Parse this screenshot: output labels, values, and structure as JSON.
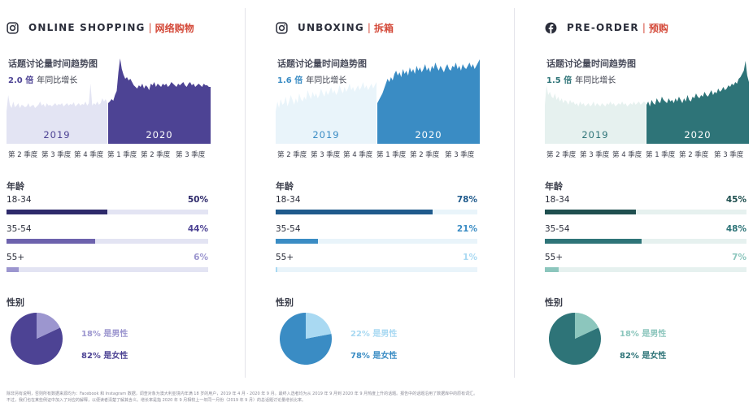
{
  "panels": [
    {
      "title_en": "ONLINE SHOPPING",
      "title_cn": "网络购物",
      "icon": "instagram-icon",
      "trend_label": "话题讨论量时间趋势图",
      "growth_value": "2.0 倍",
      "growth_text": "年同比增长",
      "age_label": "年龄",
      "gender_label": "性别",
      "colors": {
        "dark": "#2e2a6b",
        "main": "#4d4394",
        "mid": "#6d62ad",
        "light": "#9c96cf",
        "pale": "#e3e4f3"
      },
      "chart_data": {
        "type": "area",
        "title": "话题讨论量时间趋势图",
        "segments": [
          "2019",
          "2020"
        ],
        "quarter_labels": [
          "第 2 季度",
          "第 3 季度",
          "第 4 季度",
          "第 1 季度",
          "第 2 季度",
          "第 3 季度"
        ],
        "values_2019": [
          40,
          60,
          48,
          44,
          52,
          45,
          47,
          50,
          44,
          48,
          47,
          45,
          46,
          50,
          45,
          47,
          48,
          44,
          46,
          48,
          52,
          47,
          49,
          45,
          50,
          47,
          48,
          46,
          48,
          50,
          47,
          49,
          48,
          50,
          46,
          48,
          50,
          47,
          49,
          48,
          51,
          46,
          48,
          50,
          47,
          49,
          48,
          52,
          47,
          50,
          74,
          47,
          50,
          48,
          52,
          48,
          50,
          56,
          52,
          55,
          50
        ],
        "values_2020": [
          50,
          52,
          55,
          53,
          60,
          65,
          88,
          105,
          92,
          85,
          80,
          82,
          78,
          80,
          76,
          72,
          70,
          68,
          72,
          70,
          74,
          68,
          72,
          70,
          66,
          74,
          72,
          76,
          70,
          74,
          72,
          70,
          74,
          72,
          74,
          70,
          72,
          76,
          74,
          72,
          70,
          74,
          72,
          74,
          76,
          72,
          70,
          74,
          76,
          72,
          74,
          70,
          72,
          74,
          72,
          70,
          74,
          72,
          72,
          70,
          70
        ]
      },
      "age": [
        {
          "label": "18-34",
          "pct": 50,
          "pct_label": "50%"
        },
        {
          "label": "35-54",
          "pct": 44,
          "pct_label": "44%"
        },
        {
          "label": "55+",
          "pct": 6,
          "pct_label": "6%"
        }
      ],
      "gender": {
        "male_pct": 18,
        "female_pct": 82,
        "male_label": "18% 是男性",
        "female_label": "82% 是女性"
      }
    },
    {
      "title_en": "UNBOXING",
      "title_cn": "拆箱",
      "icon": "instagram-icon",
      "trend_label": "话题讨论量时间趋势图",
      "growth_value": "1.6 倍",
      "growth_text": "年同比增长",
      "age_label": "年龄",
      "gender_label": "性别",
      "colors": {
        "dark": "#1f5a8c",
        "main": "#3a8cc4",
        "mid": "#3a8cc4",
        "light": "#a9d9f2",
        "pale": "#e9f4fa"
      },
      "chart_data": {
        "type": "area",
        "title": "话题讨论量时间趋势图",
        "segments": [
          "2019",
          "2020"
        ],
        "quarter_labels": [
          "第 2 季度",
          "第 3 季度",
          "第 4 季度",
          "第 1 季度",
          "第 2 季度",
          "第 3 季度"
        ],
        "values_2019": [
          40,
          52,
          44,
          55,
          48,
          50,
          58,
          46,
          52,
          60,
          54,
          48,
          56,
          50,
          62,
          55,
          52,
          58,
          54,
          66,
          60,
          55,
          64,
          58,
          62,
          56,
          60,
          68,
          62,
          58,
          66,
          60,
          64,
          70,
          62,
          66,
          60,
          64,
          72,
          66,
          62,
          70,
          64,
          68,
          74,
          66,
          70,
          64,
          68,
          72,
          66,
          70,
          76,
          68,
          72,
          66,
          70,
          74,
          68,
          72,
          76
        ],
        "values_2020": [
          50,
          54,
          58,
          62,
          68,
          74,
          80,
          76,
          82,
          78,
          86,
          90,
          84,
          88,
          82,
          92,
          86,
          90,
          84,
          94,
          88,
          92,
          86,
          96,
          90,
          94,
          88,
          92,
          98,
          90,
          94,
          88,
          96,
          92,
          100,
          94,
          90,
          96,
          92,
          88,
          94,
          98,
          92,
          90,
          96,
          94,
          100,
          92,
          96,
          90,
          98,
          94,
          92,
          96,
          100,
          94,
          98,
          92,
          96,
          100,
          104
        ]
      },
      "age": [
        {
          "label": "18-34",
          "pct": 78,
          "pct_label": "78%"
        },
        {
          "label": "35-54",
          "pct": 21,
          "pct_label": "21%"
        },
        {
          "label": "55+",
          "pct": 1,
          "pct_label": "1%"
        }
      ],
      "gender": {
        "male_pct": 22,
        "female_pct": 78,
        "male_label": "22% 是男性",
        "female_label": "78% 是女性"
      }
    },
    {
      "title_en": "PRE-ORDER",
      "title_cn": "预购",
      "icon": "facebook-icon",
      "trend_label": "话题讨论量时间趋势图",
      "growth_value": "1.5 倍",
      "growth_text": "年同比增长",
      "age_label": "年龄",
      "gender_label": "性别",
      "colors": {
        "dark": "#1f4f4f",
        "main": "#2e7478",
        "mid": "#2e7478",
        "light": "#8cc6bd",
        "pale": "#e6f1ef"
      },
      "chart_data": {
        "type": "area",
        "title": "话题讨论量时间趋势图",
        "segments": [
          "2019",
          "2020"
        ],
        "quarter_labels": [
          "第 2 季度",
          "第 3 季度",
          "第 4 季度",
          "第 1 季度",
          "第 2 季度",
          "第 3 季度"
        ],
        "values_2019": [
          48,
          72,
          60,
          64,
          58,
          56,
          62,
          54,
          58,
          52,
          56,
          50,
          54,
          52,
          48,
          54,
          50,
          52,
          48,
          50,
          46,
          52,
          48,
          50,
          46,
          48,
          50,
          46,
          48,
          52,
          46,
          50,
          48,
          46,
          50,
          48,
          46,
          50,
          48,
          52,
          48,
          50,
          46,
          48,
          50,
          48,
          52,
          48,
          50,
          46,
          48,
          50,
          48,
          52,
          48,
          50,
          52,
          48,
          50,
          52,
          50
        ],
        "values_2020": [
          48,
          52,
          46,
          54,
          50,
          48,
          56,
          52,
          50,
          58,
          54,
          52,
          50,
          56,
          52,
          54,
          50,
          56,
          52,
          58,
          54,
          50,
          56,
          52,
          60,
          54,
          52,
          58,
          56,
          62,
          58,
          56,
          60,
          58,
          64,
          60,
          58,
          62,
          66,
          60,
          64,
          62,
          68,
          64,
          66,
          70,
          66,
          68,
          72,
          70,
          74,
          72,
          76,
          74,
          80,
          82,
          86,
          90,
          102,
          84,
          76
        ]
      },
      "age": [
        {
          "label": "18-34",
          "pct": 45,
          "pct_label": "45%"
        },
        {
          "label": "35-54",
          "pct": 48,
          "pct_label": "48%"
        },
        {
          "label": "55+",
          "pct": 7,
          "pct_label": "7%"
        }
      ],
      "gender": {
        "male_pct": 18,
        "female_pct": 82,
        "male_label": "18% 是男性",
        "female_label": "82% 是女性"
      }
    }
  ],
  "footnote": [
    "除非另有说明，否则所有数据来源均为：Facebook 和 Instagram 数据，调查对象为澳大利亚境内年满 18 岁的用户，2019 年 4 月 - 2020 年 9 月。最终入选者均为从 2019 年 9 月到 2020 年 9 月热度上升的话题。报告中的话题沿用了数据库中的原有词汇。",
    "不过，我们也在某些例证中加入了对应的解释，以便读者清楚了解其含义。增长率是指 2020 年 9 月相较上一年同一月份（2019 年 9 月）的总话题讨论量增长比率。"
  ]
}
